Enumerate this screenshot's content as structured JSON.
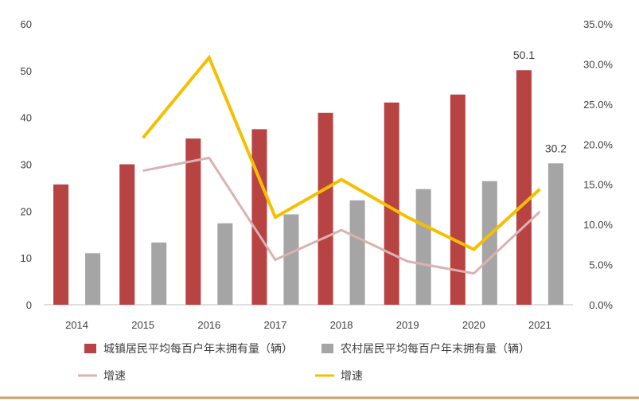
{
  "chart_data": {
    "type": "bar",
    "categories": [
      "2014",
      "2015",
      "2016",
      "2017",
      "2018",
      "2019",
      "2020",
      "2021"
    ],
    "series": [
      {
        "name": "城镇居民平均每百户年末拥有量（辆）",
        "kind": "bar",
        "axis": "left",
        "color": "#b84343",
        "values": [
          25.7,
          30.0,
          35.5,
          37.5,
          41.0,
          43.2,
          44.9,
          50.1
        ]
      },
      {
        "name": "农村居民平均每百户年末拥有量（辆）",
        "kind": "bar",
        "axis": "left",
        "color": "#a5a5a5",
        "values": [
          11.0,
          13.3,
          17.4,
          19.3,
          22.3,
          24.7,
          26.4,
          30.2
        ]
      },
      {
        "name": "增速",
        "kind": "line",
        "axis": "right",
        "color": "#dbb1b1",
        "values": [
          null,
          16.7,
          18.3,
          5.6,
          9.3,
          5.4,
          3.9,
          11.6
        ]
      },
      {
        "name": "增速",
        "kind": "line",
        "axis": "right",
        "color": "#f5bf00",
        "values": [
          null,
          20.8,
          30.8,
          10.9,
          15.6,
          10.9,
          6.9,
          14.4
        ]
      }
    ],
    "data_labels": [
      {
        "category": "2021",
        "series": 0,
        "text": "50.1"
      },
      {
        "category": "2021",
        "series": 1,
        "text": "30.2"
      }
    ],
    "y_left": {
      "min": 0,
      "max": 60,
      "step": 10,
      "ticks": [
        "0",
        "10",
        "20",
        "30",
        "40",
        "50",
        "60"
      ]
    },
    "y_right": {
      "min": 0,
      "max": 35,
      "step": 5,
      "ticks": [
        "0.0%",
        "5.0%",
        "10.0%",
        "15.0%",
        "20.0%",
        "25.0%",
        "30.0%",
        "35.0%"
      ]
    },
    "grid": false,
    "legend_position": "bottom"
  },
  "colors": {
    "axis": "#bfbfbf",
    "text": "#404040",
    "frame_bottom": "#c8a26a"
  }
}
